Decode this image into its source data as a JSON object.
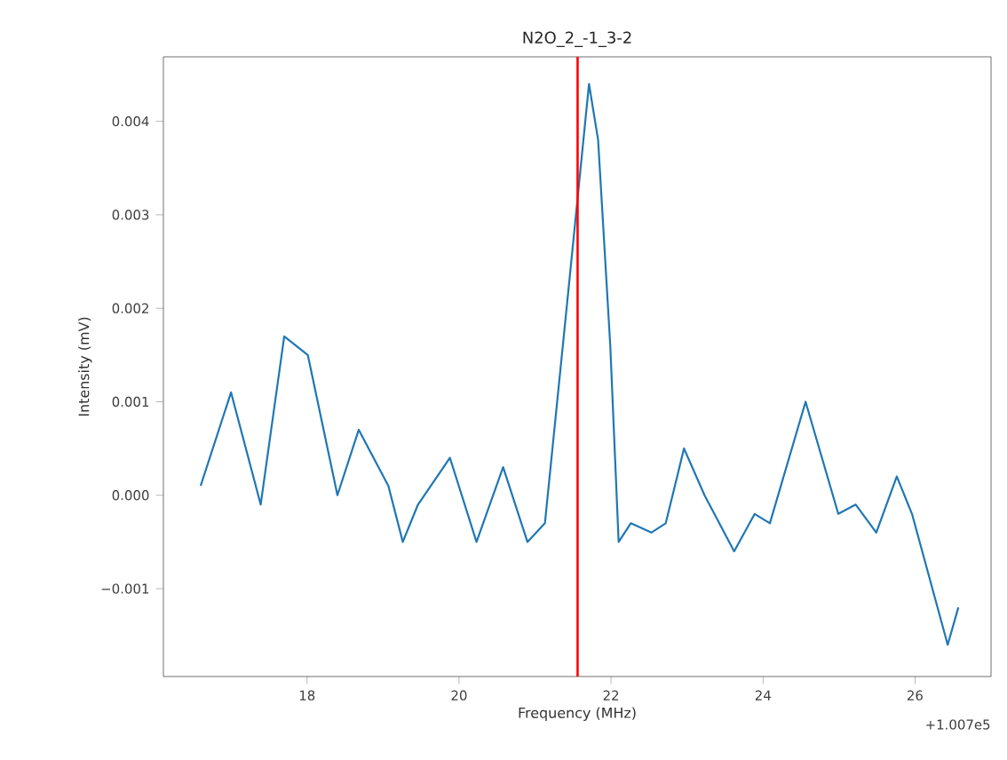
{
  "chart_data": {
    "type": "line",
    "title": "N2O_2_-1_3-2",
    "xlabel": "Frequency (MHz)",
    "ylabel": "Intensity (mV)",
    "annotations": [
      "+1.007e5"
    ],
    "x": [
      16.6,
      17.0,
      17.39,
      17.7,
      18.01,
      18.4,
      18.68,
      19.07,
      19.26,
      19.46,
      19.88,
      20.23,
      20.58,
      20.9,
      21.13,
      21.44,
      21.56,
      21.71,
      21.83,
      21.99,
      22.1,
      22.26,
      22.53,
      22.72,
      22.96,
      23.23,
      23.62,
      23.89,
      24.09,
      24.56,
      24.99,
      25.22,
      25.49,
      25.76,
      25.96,
      26.43,
      26.57
    ],
    "series": [
      {
        "color": "#1f77b4",
        "values": [
          0.0001,
          0.0011,
          -0.0001,
          0.0017,
          0.0015,
          0.0,
          0.0007,
          0.0001,
          -0.0005,
          -0.0001,
          0.0004,
          -0.0005,
          0.0003,
          -0.0005,
          -0.0003,
          0.0022,
          null,
          0.0044,
          0.0038,
          0.0016,
          -0.0005,
          -0.0003,
          -0.0004,
          -0.0003,
          0.0005,
          0.0,
          -0.0006,
          -0.0002,
          -0.0003,
          0.001,
          -0.0002,
          -0.0001,
          -0.0004,
          0.0002,
          -0.0002,
          -0.0016,
          -0.0012
        ]
      }
    ],
    "xlim": [
      16.11,
      27.0
    ],
    "ylim": [
      -0.00194,
      0.00469
    ],
    "xticks": [
      18,
      20,
      22,
      24,
      26
    ],
    "yticks": [
      {
        "value": -0.001,
        "label": "−0.001"
      },
      {
        "value": 0.0,
        "label": "0.000"
      },
      {
        "value": 0.001,
        "label": "0.001"
      },
      {
        "value": 0.002,
        "label": "0.002"
      },
      {
        "value": 0.003,
        "label": "0.003"
      },
      {
        "value": 0.004,
        "label": "0.004"
      }
    ],
    "ref_lines": [
      {
        "axis": "x",
        "value": 21.56,
        "color": "#ff0000"
      }
    ]
  }
}
